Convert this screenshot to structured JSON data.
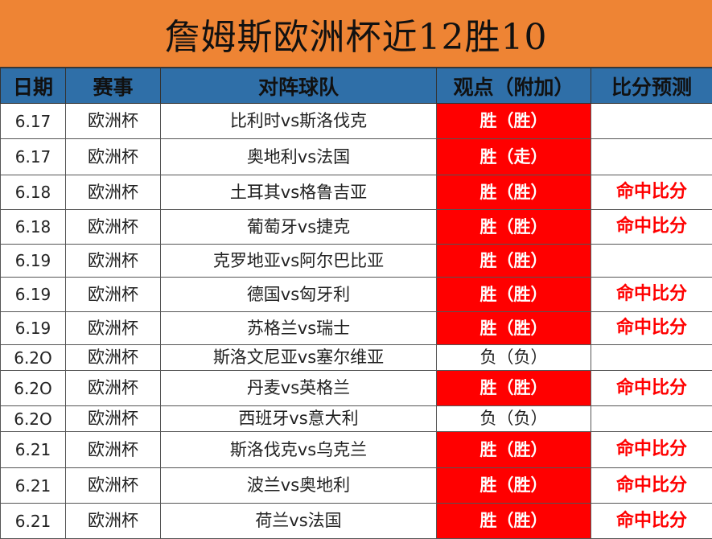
{
  "title": "詹姆斯欧洲杯近12胜10",
  "headers": [
    "日期",
    "赛事",
    "对阵球队",
    "观点（附加）",
    "比分预测"
  ],
  "rows": [
    {
      "date": "6.17",
      "league": "欧洲杯",
      "match": "比利时vs斯洛伐克",
      "view": "胜（胜）",
      "score": ""
    },
    {
      "date": "6.17",
      "league": "欧洲杯",
      "match": "奥地利vs法国",
      "view": "胜（走）",
      "score": ""
    },
    {
      "date": "6.18",
      "league": "欧洲杯",
      "match": "土耳其vs格鲁吉亚",
      "view": "胜（胜）",
      "score": "命中比分"
    },
    {
      "date": "6.18",
      "league": "欧洲杯",
      "match": "葡萄牙vs捷克",
      "view": "胜（胜）",
      "score": "命中比分"
    },
    {
      "date": "6.19",
      "league": "欧洲杯",
      "match": "克罗地亚vs阿尔巴比亚",
      "view": "胜（胜）",
      "score": ""
    },
    {
      "date": "6.19",
      "league": "欧洲杯",
      "match": "德国vs匈牙利",
      "view": "胜（胜）",
      "score": "命中比分"
    },
    {
      "date": "6.19",
      "league": "欧洲杯",
      "match": "苏格兰vs瑞士",
      "view": "胜（胜）",
      "score": "命中比分"
    },
    {
      "date": "6.2O",
      "league": "欧洲杯",
      "match": "斯洛文尼亚vs塞尔维亚",
      "view": "负（负）",
      "score": ""
    },
    {
      "date": "6.2O",
      "league": "欧洲杯",
      "match": "丹麦vs英格兰",
      "view": "胜（胜）",
      "score": "命中比分"
    },
    {
      "date": "6.2O",
      "league": "欧洲杯",
      "match": "西班牙vs意大利",
      "view": "负（负）",
      "score": ""
    },
    {
      "date": "6.21",
      "league": "欧洲杯",
      "match": "斯洛伐克vs乌克兰",
      "view": "胜（胜）",
      "score": "命中比分"
    },
    {
      "date": "6.21",
      "league": "欧洲杯",
      "match": "波兰vs奥地利",
      "view": "胜（胜）",
      "score": "命中比分"
    },
    {
      "date": "6.21",
      "league": "欧洲杯",
      "match": "荷兰vs法国",
      "view": "胜（胜）",
      "score": "命中比分"
    }
  ],
  "colors": {
    "title_bg": "#ee8434",
    "header_bg": "#2f6fa8",
    "win_bg": "#ff0000",
    "score_text": "#ff0000"
  }
}
